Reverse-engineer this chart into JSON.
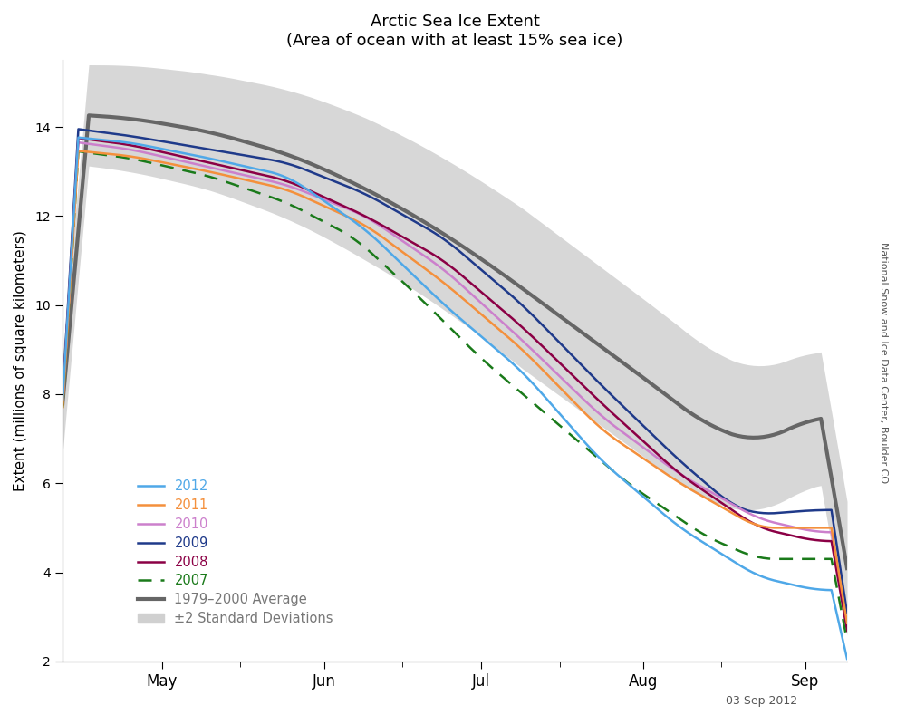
{
  "title": "Arctic Sea Ice Extent",
  "subtitle": "(Area of ocean with at least 15% sea ice)",
  "ylabel": "Extent (millions of square kilometers)",
  "date_label": "03 Sep 2012",
  "watermark": "National Snow and Ice Data Center, Boulder CO",
  "ylim": [
    2,
    15.5
  ],
  "yticks": [
    2,
    4,
    6,
    8,
    10,
    12,
    14
  ],
  "colors": {
    "2012": "#4fa8e8",
    "2011": "#f4903c",
    "2010": "#cc80cc",
    "2009": "#1f3a8a",
    "2008": "#8b0045",
    "2007": "#1a7a1a",
    "average": "#666666",
    "shade": "#d0d0d0"
  },
  "month_labels": [
    "May",
    "Jun",
    "Jul",
    "Aug",
    "Sep"
  ],
  "legend_labels": {
    "2012": "2012",
    "2011": "2011",
    "2010": "2010",
    "2009": "2009",
    "2008": "2008",
    "2007": "2007",
    "average": "1979–2000 Average",
    "shade": "±2 Standard Deviations"
  }
}
